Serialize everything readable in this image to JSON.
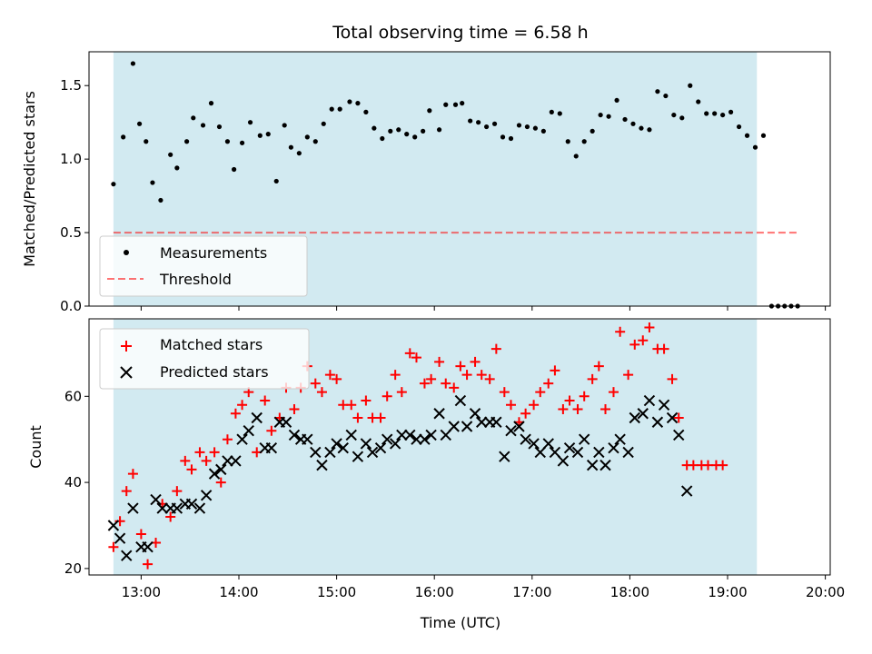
{
  "chart_data": {
    "type": "scatter",
    "title": "Total observing time = 6.58 h",
    "x_label": "Time (UTC)",
    "x_ticks": [
      "13:00",
      "14:00",
      "15:00",
      "16:00",
      "17:00",
      "18:00",
      "19:00",
      "20:00"
    ],
    "x_range": [
      "12:28",
      "20:03"
    ],
    "observing_window": [
      "12:43",
      "19:18"
    ],
    "top_panel": {
      "y_label": "Matched/Predicted stars",
      "y_ticks": [
        "0.0",
        "0.5",
        "1.0",
        "1.5"
      ],
      "y_range": [
        0,
        1.73
      ],
      "threshold": 0.5,
      "threshold_x_range": [
        "12:43",
        "19:43"
      ],
      "legend": [
        "Measurements",
        "Threshold"
      ],
      "series": [
        {
          "name": "Measurements",
          "color": "#000000",
          "points": [
            [
              "12:43",
              0.83
            ],
            [
              "12:49",
              1.15
            ],
            [
              "12:55",
              1.65
            ],
            [
              "12:59",
              1.24
            ],
            [
              "13:03",
              1.12
            ],
            [
              "13:07",
              0.84
            ],
            [
              "13:12",
              0.72
            ],
            [
              "13:18",
              1.03
            ],
            [
              "13:22",
              0.94
            ],
            [
              "13:28",
              1.12
            ],
            [
              "13:32",
              1.28
            ],
            [
              "13:38",
              1.23
            ],
            [
              "13:43",
              1.38
            ],
            [
              "13:48",
              1.22
            ],
            [
              "13:53",
              1.12
            ],
            [
              "13:57",
              0.93
            ],
            [
              "14:02",
              1.11
            ],
            [
              "14:07",
              1.25
            ],
            [
              "14:13",
              1.16
            ],
            [
              "14:18",
              1.17
            ],
            [
              "14:23",
              0.85
            ],
            [
              "14:28",
              1.23
            ],
            [
              "14:32",
              1.08
            ],
            [
              "14:37",
              1.04
            ],
            [
              "14:42",
              1.15
            ],
            [
              "14:47",
              1.12
            ],
            [
              "14:52",
              1.24
            ],
            [
              "14:57",
              1.34
            ],
            [
              "15:02",
              1.34
            ],
            [
              "15:08",
              1.39
            ],
            [
              "15:13",
              1.38
            ],
            [
              "15:18",
              1.32
            ],
            [
              "15:23",
              1.21
            ],
            [
              "15:28",
              1.14
            ],
            [
              "15:33",
              1.19
            ],
            [
              "15:38",
              1.2
            ],
            [
              "15:43",
              1.17
            ],
            [
              "15:48",
              1.15
            ],
            [
              "15:53",
              1.19
            ],
            [
              "15:57",
              1.33
            ],
            [
              "16:03",
              1.2
            ],
            [
              "16:07",
              1.37
            ],
            [
              "16:13",
              1.37
            ],
            [
              "16:17",
              1.38
            ],
            [
              "16:22",
              1.26
            ],
            [
              "16:27",
              1.25
            ],
            [
              "16:32",
              1.22
            ],
            [
              "16:37",
              1.24
            ],
            [
              "16:42",
              1.15
            ],
            [
              "16:47",
              1.14
            ],
            [
              "16:52",
              1.23
            ],
            [
              "16:57",
              1.22
            ],
            [
              "17:02",
              1.21
            ],
            [
              "17:07",
              1.19
            ],
            [
              "17:12",
              1.32
            ],
            [
              "17:17",
              1.31
            ],
            [
              "17:22",
              1.12
            ],
            [
              "17:27",
              1.02
            ],
            [
              "17:32",
              1.12
            ],
            [
              "17:37",
              1.19
            ],
            [
              "17:42",
              1.3
            ],
            [
              "17:47",
              1.29
            ],
            [
              "17:52",
              1.4
            ],
            [
              "17:57",
              1.27
            ],
            [
              "18:02",
              1.24
            ],
            [
              "18:07",
              1.21
            ],
            [
              "18:12",
              1.2
            ],
            [
              "18:17",
              1.46
            ],
            [
              "18:22",
              1.43
            ],
            [
              "18:27",
              1.3
            ],
            [
              "18:32",
              1.28
            ],
            [
              "18:37",
              1.5
            ],
            [
              "18:42",
              1.39
            ],
            [
              "18:47",
              1.31
            ],
            [
              "18:52",
              1.31
            ],
            [
              "18:57",
              1.3
            ],
            [
              "19:02",
              1.32
            ],
            [
              "19:07",
              1.22
            ],
            [
              "19:12",
              1.16
            ],
            [
              "19:17",
              1.08
            ],
            [
              "19:22",
              1.16
            ],
            [
              "19:27",
              0.0
            ],
            [
              "19:31",
              0.0
            ],
            [
              "19:35",
              0.0
            ],
            [
              "19:39",
              0.0
            ],
            [
              "19:43",
              0.0
            ]
          ]
        }
      ]
    },
    "bottom_panel": {
      "y_label": "Count",
      "y_ticks": [
        "20",
        "40",
        "60"
      ],
      "y_range": [
        18.5,
        78
      ],
      "legend": [
        "Matched stars",
        "Predicted stars"
      ],
      "series": [
        {
          "name": "Matched stars",
          "color": "#ff0000",
          "marker": "plus",
          "points": [
            [
              "12:43",
              25
            ],
            [
              "12:47",
              31
            ],
            [
              "12:51",
              38
            ],
            [
              "12:55",
              42
            ],
            [
              "13:00",
              28
            ],
            [
              "13:04",
              21
            ],
            [
              "13:09",
              26
            ],
            [
              "13:13",
              35
            ],
            [
              "13:18",
              32
            ],
            [
              "13:22",
              38
            ],
            [
              "13:27",
              45
            ],
            [
              "13:31",
              43
            ],
            [
              "13:36",
              47
            ],
            [
              "13:40",
              45
            ],
            [
              "13:45",
              47
            ],
            [
              "13:49",
              40
            ],
            [
              "13:53",
              50
            ],
            [
              "13:58",
              56
            ],
            [
              "14:02",
              58
            ],
            [
              "14:06",
              61
            ],
            [
              "14:11",
              47
            ],
            [
              "14:16",
              59
            ],
            [
              "14:20",
              52
            ],
            [
              "14:25",
              55
            ],
            [
              "14:29",
              62
            ],
            [
              "14:34",
              57
            ],
            [
              "14:38",
              62
            ],
            [
              "14:42",
              67
            ],
            [
              "14:47",
              63
            ],
            [
              "14:51",
              61
            ],
            [
              "14:56",
              65
            ],
            [
              "15:00",
              64
            ],
            [
              "15:04",
              58
            ],
            [
              "15:09",
              58
            ],
            [
              "15:13",
              55
            ],
            [
              "15:18",
              59
            ],
            [
              "15:22",
              55
            ],
            [
              "15:27",
              55
            ],
            [
              "15:31",
              60
            ],
            [
              "15:36",
              65
            ],
            [
              "15:40",
              61
            ],
            [
              "15:45",
              70
            ],
            [
              "15:49",
              69
            ],
            [
              "15:54",
              63
            ],
            [
              "15:58",
              64
            ],
            [
              "16:03",
              68
            ],
            [
              "16:07",
              63
            ],
            [
              "16:12",
              62
            ],
            [
              "16:16",
              67
            ],
            [
              "16:20",
              65
            ],
            [
              "16:25",
              68
            ],
            [
              "16:29",
              65
            ],
            [
              "16:34",
              64
            ],
            [
              "16:38",
              71
            ],
            [
              "16:43",
              61
            ],
            [
              "16:47",
              58
            ],
            [
              "16:52",
              54
            ],
            [
              "16:56",
              56
            ],
            [
              "17:01",
              58
            ],
            [
              "17:05",
              61
            ],
            [
              "17:10",
              63
            ],
            [
              "17:14",
              66
            ],
            [
              "17:19",
              57
            ],
            [
              "17:23",
              59
            ],
            [
              "17:28",
              57
            ],
            [
              "17:32",
              60
            ],
            [
              "17:37",
              64
            ],
            [
              "17:41",
              67
            ],
            [
              "17:45",
              57
            ],
            [
              "17:50",
              61
            ],
            [
              "17:54",
              75
            ],
            [
              "17:59",
              65
            ],
            [
              "18:03",
              72
            ],
            [
              "18:08",
              73
            ],
            [
              "18:12",
              76
            ],
            [
              "18:17",
              71
            ],
            [
              "18:21",
              71
            ],
            [
              "18:26",
              64
            ],
            [
              "18:30",
              55
            ],
            [
              "18:35",
              44
            ],
            [
              "18:39",
              44
            ],
            [
              "18:44",
              44
            ],
            [
              "18:48",
              44
            ],
            [
              "18:53",
              44
            ],
            [
              "18:57",
              44
            ]
          ]
        },
        {
          "name": "Predicted stars",
          "color": "#000000",
          "marker": "x",
          "points": [
            [
              "12:43",
              30
            ],
            [
              "12:47",
              27
            ],
            [
              "12:51",
              23
            ],
            [
              "12:55",
              34
            ],
            [
              "13:00",
              25
            ],
            [
              "13:04",
              25
            ],
            [
              "13:09",
              36
            ],
            [
              "13:13",
              34
            ],
            [
              "13:18",
              34
            ],
            [
              "13:22",
              34
            ],
            [
              "13:27",
              35
            ],
            [
              "13:31",
              35
            ],
            [
              "13:36",
              34
            ],
            [
              "13:40",
              37
            ],
            [
              "13:45",
              42
            ],
            [
              "13:49",
              43
            ],
            [
              "13:53",
              45
            ],
            [
              "13:58",
              45
            ],
            [
              "14:02",
              50
            ],
            [
              "14:06",
              52
            ],
            [
              "14:11",
              55
            ],
            [
              "14:16",
              48
            ],
            [
              "14:20",
              48
            ],
            [
              "14:25",
              54
            ],
            [
              "14:29",
              54
            ],
            [
              "14:34",
              51
            ],
            [
              "14:38",
              50
            ],
            [
              "14:42",
              50
            ],
            [
              "14:47",
              47
            ],
            [
              "14:51",
              44
            ],
            [
              "14:56",
              47
            ],
            [
              "15:00",
              49
            ],
            [
              "15:04",
              48
            ],
            [
              "15:09",
              51
            ],
            [
              "15:13",
              46
            ],
            [
              "15:18",
              49
            ],
            [
              "15:22",
              47
            ],
            [
              "15:27",
              48
            ],
            [
              "15:31",
              50
            ],
            [
              "15:36",
              49
            ],
            [
              "15:40",
              51
            ],
            [
              "15:45",
              51
            ],
            [
              "15:49",
              50
            ],
            [
              "15:54",
              50
            ],
            [
              "15:58",
              51
            ],
            [
              "16:03",
              56
            ],
            [
              "16:07",
              51
            ],
            [
              "16:12",
              53
            ],
            [
              "16:16",
              59
            ],
            [
              "16:20",
              53
            ],
            [
              "16:25",
              56
            ],
            [
              "16:29",
              54
            ],
            [
              "16:34",
              54
            ],
            [
              "16:38",
              54
            ],
            [
              "16:43",
              46
            ],
            [
              "16:47",
              52
            ],
            [
              "16:52",
              53
            ],
            [
              "16:56",
              50
            ],
            [
              "17:01",
              49
            ],
            [
              "17:05",
              47
            ],
            [
              "17:10",
              49
            ],
            [
              "17:14",
              47
            ],
            [
              "17:19",
              45
            ],
            [
              "17:23",
              48
            ],
            [
              "17:28",
              47
            ],
            [
              "17:32",
              50
            ],
            [
              "17:37",
              44
            ],
            [
              "17:41",
              47
            ],
            [
              "17:45",
              44
            ],
            [
              "17:50",
              48
            ],
            [
              "17:54",
              50
            ],
            [
              "17:59",
              47
            ],
            [
              "18:03",
              55
            ],
            [
              "18:08",
              56
            ],
            [
              "18:12",
              59
            ],
            [
              "18:17",
              54
            ],
            [
              "18:21",
              58
            ],
            [
              "18:26",
              55
            ],
            [
              "18:30",
              51
            ],
            [
              "18:35",
              38
            ]
          ]
        }
      ]
    },
    "colors": {
      "observing_window": "#add8e6",
      "threshold": "#ff0000",
      "measurements": "#000000",
      "matched": "#ff0000",
      "predicted": "#000000"
    }
  }
}
